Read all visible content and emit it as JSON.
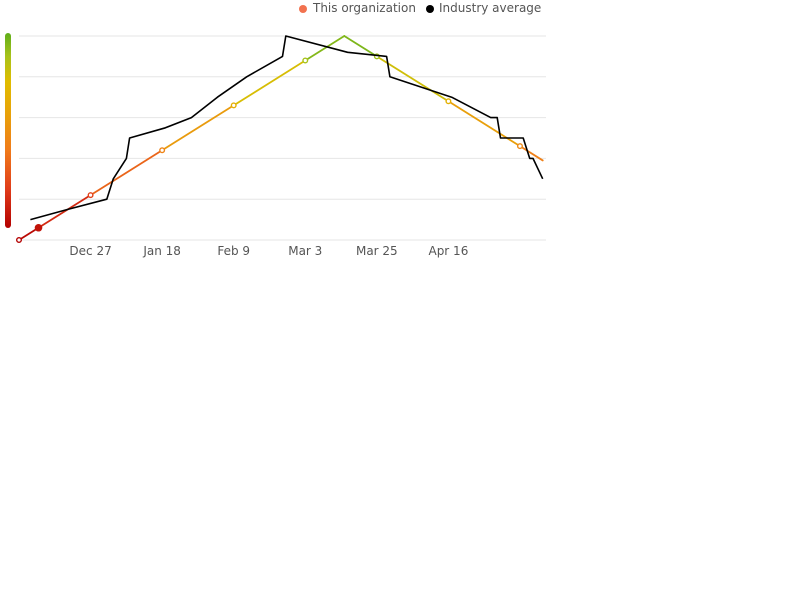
{
  "chart_data": {
    "type": "line",
    "x_ticks": [
      "Dec 27",
      "Jan 18",
      "Feb 9",
      "Mar 3",
      "Mar 25",
      "Apr 16"
    ],
    "x_tick_days": [
      22,
      44,
      66,
      88,
      110,
      132
    ],
    "xlim_days": [
      0,
      162
    ],
    "ylim": [
      0,
      100
    ],
    "grid": true,
    "legend_position": "top-right",
    "series": [
      {
        "name": "This organization",
        "legend_color": "#f2724f",
        "style": "gradient",
        "points": [
          [
            0,
            0
          ],
          [
            6,
            6
          ],
          [
            22,
            22
          ],
          [
            44,
            44
          ],
          [
            66,
            66
          ],
          [
            88,
            88
          ],
          [
            100,
            100
          ],
          [
            110,
            90
          ],
          [
            132,
            68
          ],
          [
            154,
            46
          ],
          [
            161,
            39
          ]
        ],
        "markers": [
          [
            0,
            0
          ],
          [
            22,
            22
          ],
          [
            44,
            44
          ],
          [
            66,
            66
          ],
          [
            88,
            88
          ],
          [
            110,
            90
          ],
          [
            132,
            68
          ],
          [
            154,
            46
          ]
        ],
        "highlight_point": [
          6,
          6
        ]
      },
      {
        "name": "Industry average",
        "legend_color": "#000000",
        "color": "#000000",
        "points": [
          [
            3.5,
            10
          ],
          [
            15,
            15
          ],
          [
            27,
            20
          ],
          [
            29,
            30
          ],
          [
            33,
            40
          ],
          [
            34,
            50
          ],
          [
            45,
            55
          ],
          [
            53,
            60
          ],
          [
            61,
            70
          ],
          [
            70,
            80
          ],
          [
            81,
            90
          ],
          [
            82,
            100
          ],
          [
            101,
            92
          ],
          [
            113,
            90
          ],
          [
            114,
            80
          ],
          [
            133,
            70
          ],
          [
            145,
            60
          ],
          [
            147,
            60
          ],
          [
            148,
            50
          ],
          [
            155,
            50
          ],
          [
            157,
            40
          ],
          [
            158,
            40
          ],
          [
            161,
            30
          ]
        ]
      }
    ],
    "color_scale": [
      "#b30000",
      "#e03c1a",
      "#f07b1a",
      "#e8a10a",
      "#e0bc00",
      "#a8c21a",
      "#5fae1a"
    ]
  }
}
